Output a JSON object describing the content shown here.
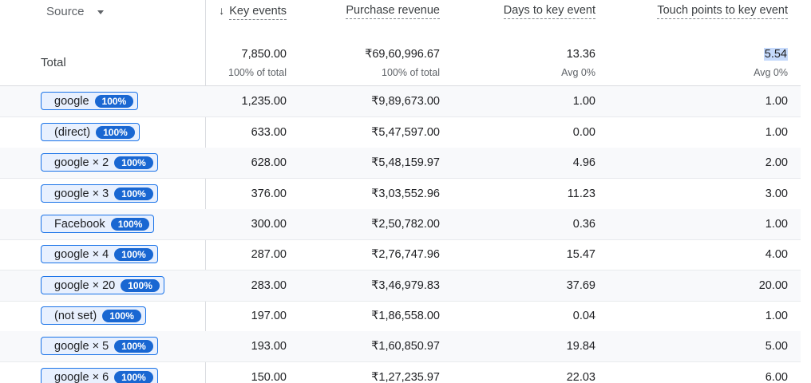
{
  "header": {
    "dimension_label": "Source",
    "dimension_dropdown_icon": "caret-down",
    "sort_icon": "arrow-down",
    "columns": [
      "Key events",
      "Purchase revenue",
      "Days to key event",
      "Touch points to key event"
    ]
  },
  "totals": {
    "label": "Total",
    "values": [
      "7,850.00",
      "₹69,60,996.67",
      "13.36",
      "5.54"
    ],
    "subs": [
      "100% of total",
      "100% of total",
      "Avg 0%",
      "Avg 0%"
    ]
  },
  "rows": [
    {
      "source": "google",
      "badge": "100%",
      "values": [
        "1,235.00",
        "₹9,89,673.00",
        "1.00",
        "1.00"
      ]
    },
    {
      "source": "(direct)",
      "badge": "100%",
      "values": [
        "633.00",
        "₹5,47,597.00",
        "0.00",
        "1.00"
      ]
    },
    {
      "source": "google × 2",
      "badge": "100%",
      "values": [
        "628.00",
        "₹5,48,159.97",
        "4.96",
        "2.00"
      ]
    },
    {
      "source": "google × 3",
      "badge": "100%",
      "values": [
        "376.00",
        "₹3,03,552.96",
        "11.23",
        "3.00"
      ]
    },
    {
      "source": "Facebook",
      "badge": "100%",
      "values": [
        "300.00",
        "₹2,50,782.00",
        "0.36",
        "1.00"
      ]
    },
    {
      "source": "google × 4",
      "badge": "100%",
      "values": [
        "287.00",
        "₹2,76,747.96",
        "15.47",
        "4.00"
      ]
    },
    {
      "source": "google × 20",
      "badge": "100%",
      "values": [
        "283.00",
        "₹3,46,979.83",
        "37.69",
        "20.00"
      ]
    },
    {
      "source": "(not set)",
      "badge": "100%",
      "values": [
        "197.00",
        "₹1,86,558.00",
        "0.04",
        "1.00"
      ]
    },
    {
      "source": "google × 5",
      "badge": "100%",
      "values": [
        "193.00",
        "₹1,60,850.97",
        "19.84",
        "5.00"
      ]
    },
    {
      "source": "google × 6",
      "badge": "100%",
      "values": [
        "150.00",
        "₹1,27,235.97",
        "22.03",
        "6.00"
      ]
    }
  ],
  "colors": {
    "chip_border": "#1a73e8",
    "chip_bg": "#e8f0fe",
    "badge_bg": "#1967d2",
    "selection_highlight": "#c6dafc"
  }
}
